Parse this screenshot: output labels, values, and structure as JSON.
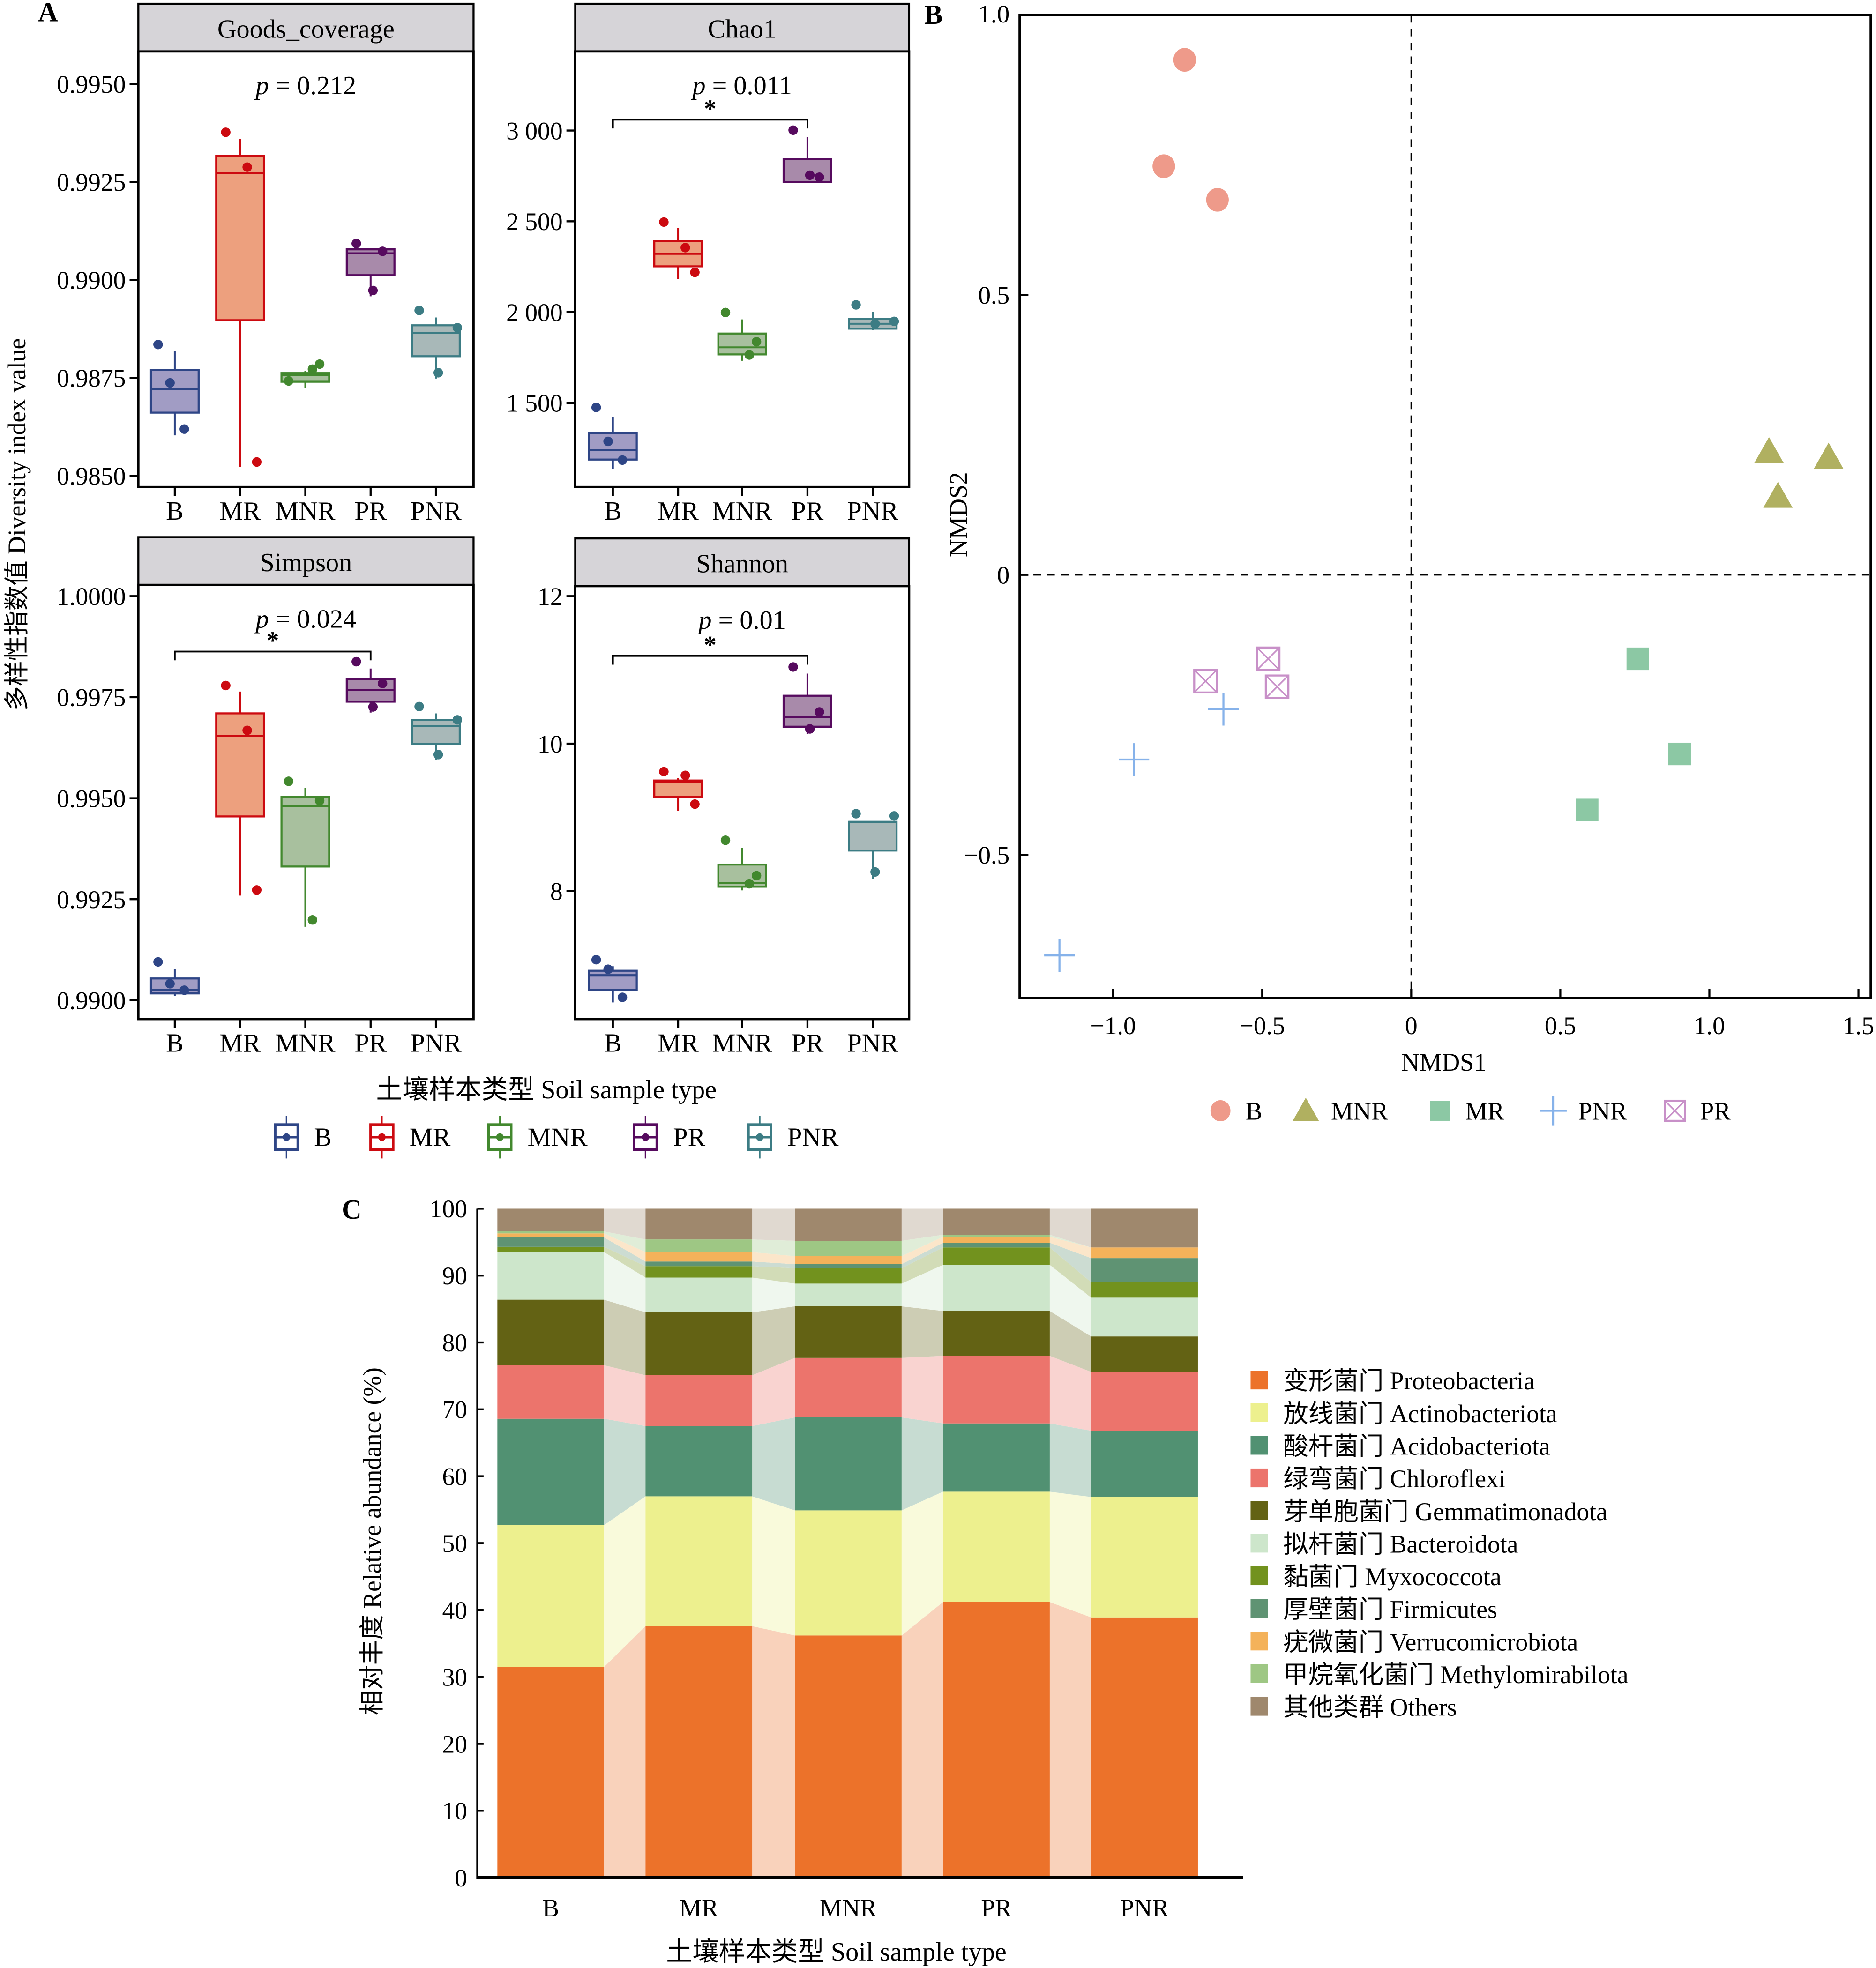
{
  "figure": {
    "panel_labels": {
      "a": "A",
      "b": "B",
      "c": "C"
    }
  },
  "chart_data": [
    {
      "id": "goods_coverage",
      "type": "boxplot",
      "panel": "A",
      "title": "Goods_coverage",
      "annotation": {
        "p_label": "p",
        "p_text": "= 0.212",
        "significance": null
      },
      "ylim": [
        0.9846,
        0.9958
      ],
      "yticks": [
        0.985,
        0.9875,
        0.99,
        0.9925,
        0.995
      ],
      "ytick_labels": [
        "0.9850",
        "0.9875",
        "0.9900",
        "0.9925",
        "0.9950"
      ],
      "categories": [
        "B",
        "MR",
        "MNR",
        "PR",
        "PNR"
      ],
      "groups": [
        {
          "name": "B",
          "min": 0.98603,
          "q1": 0.98661,
          "median": 0.98721,
          "q3": 0.9877,
          "max": 0.98818,
          "points": [
            0.98835,
            0.98737,
            0.98619
          ]
        },
        {
          "name": "MR",
          "min": 0.98522,
          "q1": 0.98897,
          "median": 0.99273,
          "q3": 0.99317,
          "max": 0.9936,
          "points": [
            0.99377,
            0.99288,
            0.98535
          ]
        },
        {
          "name": "MNR",
          "min": 0.98725,
          "q1": 0.9874,
          "median": 0.98757,
          "q3": 0.98762,
          "max": 0.98768,
          "points": [
            0.98742,
            0.98785,
            0.98772
          ]
        },
        {
          "name": "PR",
          "min": 0.98958,
          "q1": 0.99012,
          "median": 0.99068,
          "q3": 0.99078,
          "max": 0.99078,
          "points": [
            0.99093,
            0.99073,
            0.98973
          ]
        },
        {
          "name": "PNR",
          "min": 0.98748,
          "q1": 0.98805,
          "median": 0.98864,
          "q3": 0.98884,
          "max": 0.98904,
          "points": [
            0.98922,
            0.98878,
            0.98763
          ]
        }
      ]
    },
    {
      "id": "chao1",
      "type": "boxplot",
      "panel": "A",
      "title": "Chao1",
      "annotation": {
        "p_label": "p",
        "p_text": "= 0.011",
        "significance": {
          "from": "B",
          "to": "PR",
          "mark": "*",
          "y": 3060
        }
      },
      "ylim": [
        1070,
        3560
      ],
      "yticks": [
        1500,
        2000,
        2500,
        3000
      ],
      "ytick_labels": [
        "1 500",
        "2 000",
        "2 500",
        "3 000"
      ],
      "categories": [
        "B",
        "MR",
        "MNR",
        "PR",
        "PNR"
      ],
      "groups": [
        {
          "name": "B",
          "min": 1138,
          "q1": 1188,
          "median": 1241,
          "q3": 1333,
          "max": 1424,
          "points": [
            1475,
            1288,
            1185
          ]
        },
        {
          "name": "MR",
          "min": 2183,
          "q1": 2252,
          "median": 2321,
          "q3": 2391,
          "max": 2462,
          "points": [
            2496,
            2355,
            2219
          ]
        },
        {
          "name": "MNR",
          "min": 1732,
          "q1": 1767,
          "median": 1806,
          "q3": 1882,
          "max": 1960,
          "points": [
            1998,
            1837,
            1764
          ]
        },
        {
          "name": "PR",
          "min": 2716,
          "q1": 2716,
          "median": 2716,
          "q3": 2842,
          "max": 2964,
          "points": [
            3002,
            2743,
            2754
          ]
        },
        {
          "name": "PNR",
          "min": 1902,
          "q1": 1909,
          "median": 1936,
          "q3": 1962,
          "max": 2002,
          "points": [
            2040,
            1949,
            1936
          ]
        }
      ]
    },
    {
      "id": "simpson",
      "type": "boxplot",
      "panel": "A",
      "title": "Simpson",
      "annotation": {
        "p_label": "p",
        "p_text": "= 0.024",
        "significance": {
          "from": "B",
          "to": "PR",
          "mark": "*",
          "y": 0.99863
        }
      },
      "ylim": [
        0.98996,
        1.00027
      ],
      "yticks": [
        0.99,
        0.9925,
        0.995,
        0.9975,
        1.0
      ],
      "ytick_labels": [
        "0.9900",
        "0.9925",
        "0.9950",
        "0.9975",
        "1.0000"
      ],
      "categories": [
        "B",
        "MR",
        "MNR",
        "PR",
        "PNR"
      ],
      "groups": [
        {
          "name": "B",
          "min": 0.99011,
          "q1": 0.99017,
          "median": 0.99026,
          "q3": 0.99054,
          "max": 0.99078,
          "points": [
            0.99095,
            0.99041,
            0.99025
          ]
        },
        {
          "name": "MR",
          "min": 0.99259,
          "q1": 0.99455,
          "median": 0.99654,
          "q3": 0.9971,
          "max": 0.99764,
          "points": [
            0.99779,
            0.99668,
            0.99273
          ]
        },
        {
          "name": "MNR",
          "min": 0.99182,
          "q1": 0.99331,
          "median": 0.9948,
          "q3": 0.99503,
          "max": 0.99526,
          "points": [
            0.99542,
            0.99494,
            0.99199
          ]
        },
        {
          "name": "PR",
          "min": 0.99712,
          "q1": 0.99739,
          "median": 0.99768,
          "q3": 0.99795,
          "max": 0.99821,
          "points": [
            0.99838,
            0.99784,
            0.99726
          ]
        },
        {
          "name": "PNR",
          "min": 0.99594,
          "q1": 0.99635,
          "median": 0.99678,
          "q3": 0.99694,
          "max": 0.9971,
          "points": [
            0.99727,
            0.99694,
            0.99608
          ]
        }
      ]
    },
    {
      "id": "shannon",
      "type": "boxplot",
      "panel": "A",
      "title": "Shannon",
      "annotation": {
        "p_label": "p",
        "p_text": "= 0.01",
        "significance": {
          "from": "B",
          "to": "PR",
          "mark": "*",
          "y": 11.19
        }
      },
      "ylim": [
        6.34,
        12.13
      ],
      "yticks": [
        8,
        10,
        12
      ],
      "ytick_labels": [
        "8",
        "10",
        "12"
      ],
      "categories": [
        "B",
        "MR",
        "MNR",
        "PR",
        "PNR"
      ],
      "groups": [
        {
          "name": "B",
          "min": 6.49,
          "q1": 6.66,
          "median": 6.86,
          "q3": 6.92,
          "max": 6.98,
          "points": [
            7.07,
            6.94,
            6.56
          ]
        },
        {
          "name": "MR",
          "min": 9.09,
          "q1": 9.28,
          "median": 9.48,
          "q3": 9.5,
          "max": 9.53,
          "points": [
            9.62,
            9.57,
            9.18
          ]
        },
        {
          "name": "MNR",
          "min": 8.01,
          "q1": 8.06,
          "median": 8.11,
          "q3": 8.36,
          "max": 8.59,
          "points": [
            8.69,
            8.21,
            8.1
          ]
        },
        {
          "name": "PR",
          "min": 10.13,
          "q1": 10.23,
          "median": 10.36,
          "q3": 10.65,
          "max": 10.95,
          "points": [
            11.04,
            10.43,
            10.2
          ]
        },
        {
          "name": "PNR",
          "min": 8.17,
          "q1": 8.55,
          "median": 8.94,
          "q3": 8.94,
          "max": 8.94,
          "points": [
            9.05,
            9.02,
            8.26
          ]
        }
      ]
    },
    {
      "id": "nmds",
      "type": "scatter",
      "panel": "B",
      "xlabel": "NMDS1",
      "ylabel": "NMDS2",
      "xlim": [
        -1.31,
        1.54
      ],
      "ylim": [
        -0.76,
        1.0
      ],
      "xticks": [
        -1.0,
        -0.5,
        0,
        0.5,
        1.0,
        1.5
      ],
      "xtick_labels": [
        "−1.0",
        "−0.5",
        "0",
        "0.5",
        "1.0",
        "1.5"
      ],
      "yticks": [
        -0.5,
        0,
        0.5,
        1.0
      ],
      "ytick_labels": [
        "−0.5",
        "0",
        "0.5",
        "1.0"
      ],
      "reference_lines": {
        "x": 0,
        "y": 0,
        "style": "dashed"
      },
      "legend_position": "bottom",
      "series": [
        {
          "name": "B",
          "marker": "circle",
          "color": "#ee9a8a",
          "points": [
            [
              -0.76,
              0.92
            ],
            [
              -0.83,
              0.73
            ],
            [
              -0.65,
              0.67
            ]
          ]
        },
        {
          "name": "MNR",
          "marker": "triangle",
          "color": "#b0b060",
          "points": [
            [
              1.2,
              0.22
            ],
            [
              1.4,
              0.21
            ],
            [
              1.23,
              0.14
            ]
          ]
        },
        {
          "name": "MR",
          "marker": "square",
          "color": "#8cc8a4",
          "points": [
            [
              0.76,
              -0.15
            ],
            [
              0.9,
              -0.32
            ],
            [
              0.59,
              -0.42
            ]
          ]
        },
        {
          "name": "PNR",
          "marker": "plus",
          "color": "#86b2ea",
          "points": [
            [
              -0.63,
              -0.24
            ],
            [
              -0.93,
              -0.33
            ],
            [
              -1.18,
              -0.68
            ]
          ]
        },
        {
          "name": "PR",
          "marker": "boxx",
          "color": "#c890c8",
          "points": [
            [
              -0.69,
              -0.19
            ],
            [
              -0.48,
              -0.15
            ],
            [
              -0.45,
              -0.2
            ]
          ]
        }
      ]
    },
    {
      "id": "relative_abundance",
      "type": "bar",
      "stacked": true,
      "panel": "C",
      "xlabel": "土壤样本类型 Soil sample type",
      "ylabel": "相对丰度 Relative abundance (%)",
      "ylim": [
        0,
        100
      ],
      "yticks": [
        0,
        10,
        20,
        30,
        40,
        50,
        60,
        70,
        80,
        90,
        100
      ],
      "categories": [
        "B",
        "MR",
        "MNR",
        "PR",
        "PNR"
      ],
      "legend_position": "right",
      "series": [
        {
          "name": "变形菌门 Proteobacteria",
          "color": "#ec722a",
          "values": [
            31.5,
            37.6,
            36.2,
            41.2,
            38.9
          ]
        },
        {
          "name": "放线菌门 Actinobacteriota",
          "color": "#edf08e",
          "values": [
            21.2,
            19.4,
            18.7,
            16.5,
            18.0
          ]
        },
        {
          "name": "酸杆菌门 Acidobacteriota",
          "color": "#519172",
          "values": [
            15.9,
            10.5,
            13.9,
            10.2,
            9.9
          ]
        },
        {
          "name": "绿弯菌门 Chloroflexi",
          "color": "#ec746c",
          "values": [
            8.0,
            7.6,
            8.9,
            10.1,
            8.8
          ]
        },
        {
          "name": "芽单胞菌门 Gemmatimonadota",
          "color": "#636214",
          "values": [
            9.8,
            9.4,
            7.7,
            6.7,
            5.3
          ]
        },
        {
          "name": "拟杆菌门 Bacteroidota",
          "color": "#cde6cb",
          "values": [
            7.1,
            5.2,
            3.4,
            6.9,
            5.8
          ]
        },
        {
          "name": "黏菌门 Myxococcota",
          "color": "#72921e",
          "values": [
            0.8,
            1.7,
            2.3,
            2.6,
            2.3
          ]
        },
        {
          "name": "厚壁菌门 Firmicutes",
          "color": "#5f9373",
          "values": [
            1.4,
            0.7,
            0.6,
            0.7,
            3.6
          ]
        },
        {
          "name": "疣微菌门 Verrucomicrobiota",
          "color": "#f4b25a",
          "values": [
            0.6,
            1.4,
            1.2,
            0.9,
            1.6
          ]
        },
        {
          "name": "甲烷氧化菌门 Methylomirabilota",
          "color": "#9ec784",
          "values": [
            0.3,
            1.9,
            2.3,
            0.3,
            0.0
          ]
        },
        {
          "name": "其他类群 Others",
          "color": "#9f886d",
          "values": [
            3.4,
            4.6,
            4.8,
            3.9,
            5.8
          ]
        }
      ]
    }
  ],
  "panel_a": {
    "ylabel": "多样性指数值 Diversity index value",
    "xlabel": "土壤样本类型 Soil sample type",
    "group_colors": {
      "B": {
        "line": "#2e4586",
        "fill": "#a19cc4"
      },
      "MR": {
        "line": "#cc0a10",
        "fill": "#eda07e"
      },
      "MNR": {
        "line": "#42882e",
        "fill": "#a8c09e"
      },
      "PR": {
        "line": "#560a5e",
        "fill": "#a88aaa"
      },
      "PNR": {
        "line": "#3c7c84",
        "fill": "#a8b8b8"
      }
    },
    "legend": [
      "B",
      "MR",
      "MNR",
      "PR",
      "PNR"
    ],
    "strip_color": "#d6d4d8"
  }
}
